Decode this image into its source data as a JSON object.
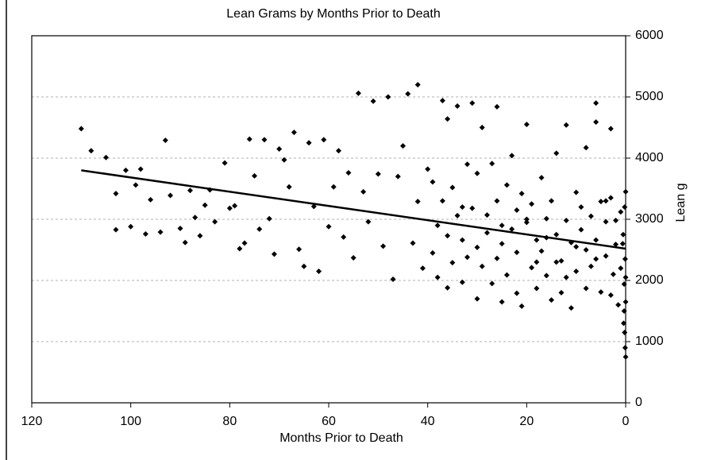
{
  "chart_data": {
    "type": "scatter",
    "title": "Lean Grams by Months Prior to Death",
    "x_label": "Months Prior to Death",
    "y_label": "Lean g",
    "xlim": [
      120,
      0
    ],
    "xticks": [
      120,
      100,
      80,
      60,
      40,
      20,
      0
    ],
    "ylim": [
      0,
      6000
    ],
    "yticks": [
      0,
      1000,
      2000,
      3000,
      4000,
      5000,
      6000
    ],
    "grid": true,
    "marker_color": "#000000",
    "points": {
      "x": [
        110,
        108,
        105,
        103,
        103,
        101,
        100,
        99,
        98,
        97,
        96,
        94,
        93,
        92,
        90,
        89,
        88,
        87,
        86,
        85,
        84,
        83,
        81,
        80,
        79,
        78,
        77,
        76,
        75,
        74,
        73,
        72,
        71,
        70,
        69,
        68,
        67,
        66,
        65,
        64,
        63,
        62,
        61,
        60,
        59,
        58,
        57,
        56,
        55,
        54,
        53,
        52,
        51,
        50,
        49,
        48,
        47,
        46,
        45,
        44,
        43,
        42,
        42,
        41,
        40,
        39,
        39,
        38,
        38,
        37,
        37,
        36,
        36,
        36,
        35,
        35,
        34,
        34,
        33,
        33,
        32,
        32,
        31,
        31,
        30,
        30,
        30,
        29,
        29,
        28,
        28,
        27,
        27,
        26,
        26,
        26,
        25,
        25,
        24,
        24,
        23,
        23,
        22,
        22,
        22,
        21,
        21,
        20,
        20,
        19,
        19,
        18,
        18,
        17,
        17,
        16,
        16,
        15,
        15,
        14,
        14,
        13,
        13,
        12,
        12,
        11,
        11,
        10,
        10,
        9,
        9,
        8,
        8,
        8,
        7,
        7,
        6,
        6,
        6,
        5,
        5,
        4,
        4,
        3,
        3,
        3,
        2,
        2,
        1,
        1,
        0.5,
        0.3,
        0.3,
        0.2,
        0.2,
        0.1,
        0.1,
        0,
        0,
        0,
        0,
        0.4,
        0.6,
        1.5,
        2.5,
        12,
        18,
        25,
        33,
        20,
        16,
        14,
        10,
        6,
        4
      ],
      "y": [
        4480,
        4120,
        4010,
        3420,
        2830,
        3800,
        2880,
        3560,
        3820,
        2760,
        3320,
        2790,
        4290,
        3390,
        2850,
        2620,
        3470,
        3030,
        2730,
        3230,
        3480,
        2960,
        3920,
        3180,
        3220,
        2520,
        2610,
        4310,
        3710,
        2840,
        4300,
        3010,
        2430,
        4150,
        3970,
        3530,
        4420,
        2510,
        2230,
        4250,
        3210,
        2150,
        4300,
        2880,
        3530,
        4120,
        2710,
        3760,
        2370,
        5060,
        3450,
        2960,
        4930,
        3740,
        2560,
        5000,
        2020,
        3700,
        4200,
        5050,
        2610,
        3290,
        5200,
        2200,
        3820,
        2450,
        3610,
        2900,
        2050,
        4940,
        3300,
        1880,
        2730,
        4640,
        3520,
        2290,
        4850,
        3060,
        1970,
        2660,
        3900,
        2380,
        4900,
        3180,
        1700,
        2540,
        3750,
        4500,
        2230,
        3070,
        2780,
        3910,
        1950,
        2360,
        4840,
        3300,
        2600,
        1650,
        3560,
        2090,
        4040,
        2840,
        1790,
        3150,
        2460,
        3420,
        1580,
        2950,
        4550,
        2210,
        3250,
        2660,
        1870,
        3680,
        2480,
        3010,
        2080,
        1680,
        3300,
        2750,
        4080,
        2320,
        1800,
        4540,
        2980,
        1550,
        2620,
        3440,
        2150,
        2830,
        3200,
        1870,
        2500,
        4170,
        3050,
        2230,
        4900,
        4590,
        2660,
        1810,
        3290,
        2400,
        2960,
        1760,
        3350,
        4480,
        2590,
        2980,
        2200,
        3120,
        2750,
        1940,
        1500,
        1150,
        3200,
        900,
        2350,
        750,
        3450,
        1650,
        2050,
        1300,
        2600,
        1600,
        2100,
        2050,
        2300,
        2900,
        3200,
        3000,
        2700,
        2300,
        2550,
        2350,
        3300
      ]
    },
    "trend": {
      "x": [
        110,
        0
      ],
      "y": [
        3800,
        2520
      ],
      "color": "#000000"
    }
  }
}
